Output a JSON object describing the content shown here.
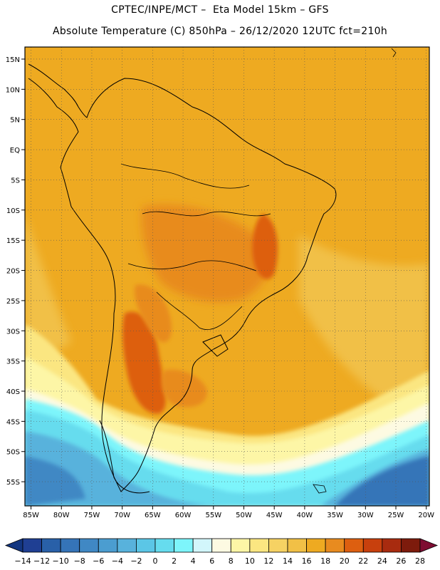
{
  "header": {
    "line1": "CPTEC/INPE/MCT –  Eta Model 15km – GFS",
    "line2": "Absolute Temperature (C) 850hPa – 26/12/2020 12UTC fct=210h"
  },
  "map": {
    "lon_range": [
      -86,
      -19.5
    ],
    "lat_range": [
      -59,
      17
    ],
    "lon_ticks": [
      {
        "value": -85,
        "label": "85W"
      },
      {
        "value": -80,
        "label": "80W"
      },
      {
        "value": -75,
        "label": "75W"
      },
      {
        "value": -70,
        "label": "70W"
      },
      {
        "value": -65,
        "label": "65W"
      },
      {
        "value": -60,
        "label": "60W"
      },
      {
        "value": -55,
        "label": "55W"
      },
      {
        "value": -50,
        "label": "50W"
      },
      {
        "value": -45,
        "label": "45W"
      },
      {
        "value": -40,
        "label": "40W"
      },
      {
        "value": -35,
        "label": "35W"
      },
      {
        "value": -30,
        "label": "30W"
      },
      {
        "value": -25,
        "label": "25W"
      },
      {
        "value": -20,
        "label": "20W"
      }
    ],
    "lat_ticks": [
      {
        "value": 15,
        "label": "15N"
      },
      {
        "value": 10,
        "label": "10N"
      },
      {
        "value": 5,
        "label": "5N"
      },
      {
        "value": 0,
        "label": "EQ"
      },
      {
        "value": -5,
        "label": "5S"
      },
      {
        "value": -10,
        "label": "10S"
      },
      {
        "value": -15,
        "label": "15S"
      },
      {
        "value": -20,
        "label": "20S"
      },
      {
        "value": -25,
        "label": "25S"
      },
      {
        "value": -30,
        "label": "30S"
      },
      {
        "value": -35,
        "label": "35S"
      },
      {
        "value": -40,
        "label": "40S"
      },
      {
        "value": -45,
        "label": "45S"
      },
      {
        "value": -50,
        "label": "50S"
      },
      {
        "value": -55,
        "label": "55S"
      }
    ]
  },
  "colorbar": {
    "labels": [
      "-14",
      "-12",
      "-10",
      "-8",
      "-6",
      "-4",
      "-2",
      "0",
      "2",
      "4",
      "6",
      "8",
      "10",
      "12",
      "14",
      "16",
      "18",
      "20",
      "22",
      "24",
      "26",
      "28"
    ],
    "colors": [
      "#1f3f93",
      "#2960a8",
      "#3574b8",
      "#4088c4",
      "#4b9dd0",
      "#58b2dc",
      "#5bc6e6",
      "#66dcee",
      "#7df5fb",
      "#d2f6fb",
      "#fdfae2",
      "#fdf6a6",
      "#fbe681",
      "#f6d263",
      "#f1c046",
      "#eeaa21",
      "#e88b1f",
      "#dd5f10",
      "#c8400d",
      "#a82b0f",
      "#7d1b0c"
    ],
    "under_color": "#123580",
    "over_color": "#7e0c32"
  },
  "colors": {
    "land_line": "#000000",
    "grid": "#555555",
    "sea_warm": "#f1c046",
    "sea_base": "#eeaa21"
  }
}
